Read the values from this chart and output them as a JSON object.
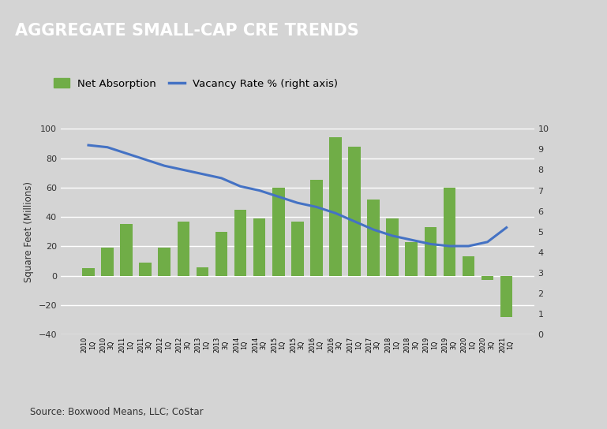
{
  "title": "AGGREGATE SMALL-CAP CRE TRENDS",
  "title_bg_color": "#555555",
  "title_text_color": "#ffffff",
  "bg_color": "#d4d4d4",
  "plot_bg_color": "#d4d4d4",
  "source_text": "Source: Boxwood Means, LLC; CoStar",
  "ylabel_left": "Square Feet (Millions)",
  "ylim_left": [
    -40,
    100
  ],
  "ylim_right": [
    0,
    10
  ],
  "yticks_left": [
    -40,
    -20,
    0,
    20,
    40,
    60,
    80,
    100
  ],
  "yticks_right": [
    0,
    1,
    2,
    3,
    4,
    5,
    6,
    7,
    8,
    9,
    10
  ],
  "bar_color": "#70ad47",
  "line_color": "#4472c4",
  "legend_bar_label": "Net Absorption",
  "legend_line_label": "Vacancy Rate % (right axis)",
  "quarters_display": [
    "2010\n1Q",
    "2010\n3Q",
    "2011\n1Q",
    "2011\n3Q",
    "2012\n1Q",
    "2012\n3Q",
    "2013\n1Q",
    "2013\n3Q",
    "2014\n1Q",
    "2014\n3Q",
    "2015\n1Q",
    "2015\n3Q",
    "2016\n1Q",
    "2016\n3Q",
    "2017\n1Q",
    "2017\n3Q",
    "2018\n1Q",
    "2018\n3Q",
    "2019\n1Q",
    "2019\n3Q",
    "2020\n1Q",
    "2020\n3Q",
    "2021\n1Q"
  ],
  "net_absorption": [
    5,
    19,
    35,
    9,
    19,
    37,
    6,
    30,
    45,
    39,
    60,
    37,
    65,
    94,
    88,
    52,
    39,
    23,
    33,
    60,
    13,
    -3,
    -28
  ],
  "vacancy_rate": [
    9.2,
    9.1,
    8.8,
    8.5,
    8.2,
    8.0,
    7.8,
    7.6,
    7.2,
    7.0,
    6.7,
    6.4,
    6.2,
    5.9,
    5.5,
    5.1,
    4.8,
    4.6,
    4.4,
    4.3,
    4.3,
    4.5,
    5.2
  ]
}
